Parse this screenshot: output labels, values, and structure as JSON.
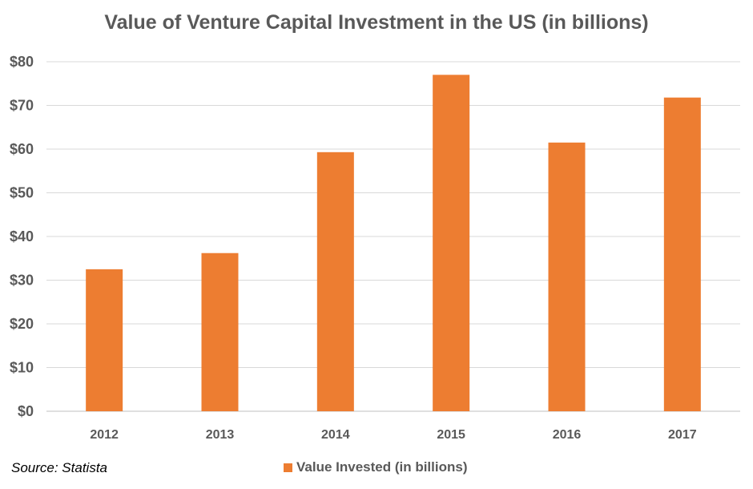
{
  "chart_data": {
    "type": "bar",
    "title": "Value of Venture Capital Investment in the US (in billions)",
    "categories": [
      "2012",
      "2013",
      "2014",
      "2015",
      "2016",
      "2017"
    ],
    "series": [
      {
        "name": "Value Invested (in billions)",
        "values": [
          32.5,
          36.2,
          59.3,
          77.0,
          61.5,
          71.8
        ],
        "color": "#ED7D31"
      }
    ],
    "ylim": [
      0,
      80
    ],
    "yticks": [
      0,
      10,
      20,
      30,
      40,
      50,
      60,
      70,
      80
    ],
    "ytick_labels": [
      "$0",
      "$10",
      "$20",
      "$30",
      "$40",
      "$50",
      "$60",
      "$70",
      "$80"
    ],
    "grid": true,
    "legend_position": "bottom",
    "source_note": "Source: Statista"
  }
}
